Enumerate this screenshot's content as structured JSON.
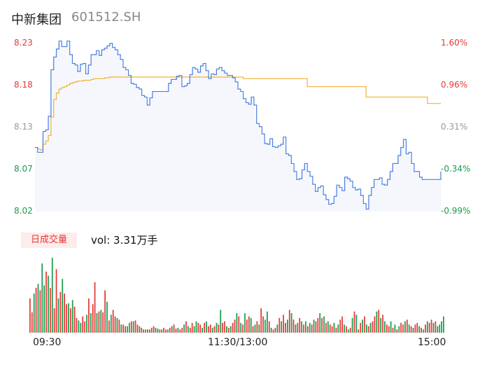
{
  "header": {
    "name": "中新集团",
    "code": "601512.SH"
  },
  "chart_data": {
    "type": "line",
    "title": "",
    "price_axis": {
      "ticks": [
        "8.23",
        "8.18",
        "8.13",
        "8.07",
        "8.02"
      ],
      "ylim": [
        8.02,
        8.23
      ]
    },
    "pct_axis": {
      "ticks": [
        "1.60%",
        "0.96%",
        "0.31%",
        "-0.34%",
        "-0.99%"
      ]
    },
    "colors": {
      "up": "#e53935",
      "down": "#1a9c4f",
      "neutral": "#999999",
      "price_line": "#4a7fe0",
      "avg_line": "#f2b233"
    },
    "x_ticks": [
      "09:30",
      "11:30/13:00",
      "15:00"
    ],
    "price": [
      8.1,
      8.094,
      8.094,
      8.12,
      8.122,
      8.139,
      8.197,
      8.213,
      8.223,
      8.233,
      8.226,
      8.226,
      8.233,
      8.216,
      8.205,
      8.203,
      8.195,
      8.204,
      8.205,
      8.192,
      8.203,
      8.216,
      8.216,
      8.221,
      8.215,
      8.222,
      8.224,
      8.227,
      8.23,
      8.225,
      8.222,
      8.216,
      8.21,
      8.2,
      8.197,
      8.19,
      8.18,
      8.179,
      8.175,
      8.173,
      8.165,
      8.163,
      8.153,
      8.162,
      8.17,
      8.17,
      8.17,
      8.17,
      8.17,
      8.17,
      8.18,
      8.185,
      8.185,
      8.189,
      8.19,
      8.176,
      8.177,
      8.18,
      8.191,
      8.2,
      8.198,
      8.194,
      8.202,
      8.205,
      8.196,
      8.186,
      8.192,
      8.191,
      8.198,
      8.2,
      8.196,
      8.193,
      8.19,
      8.19,
      8.187,
      8.182,
      8.173,
      8.17,
      8.161,
      8.156,
      8.154,
      8.163,
      8.153,
      8.13,
      8.126,
      8.117,
      8.105,
      8.104,
      8.111,
      8.101,
      8.1,
      8.102,
      8.104,
      8.113,
      8.092,
      8.09,
      8.08,
      8.07,
      8.06,
      8.061,
      8.072,
      8.08,
      8.07,
      8.064,
      8.054,
      8.045,
      8.05,
      8.052,
      8.041,
      8.035,
      8.029,
      8.03,
      8.039,
      8.053,
      8.05,
      8.046,
      8.063,
      8.061,
      8.058,
      8.05,
      8.047,
      8.048,
      8.04,
      8.03,
      8.023,
      8.04,
      8.05,
      8.06,
      8.06,
      8.062,
      8.054,
      8.053,
      8.06,
      8.07,
      8.08,
      8.08,
      8.09,
      8.1,
      8.11,
      8.092,
      8.094,
      8.08,
      8.07,
      8.07,
      8.063,
      8.06,
      8.06,
      8.06,
      8.06,
      8.06,
      8.06,
      8.06,
      8.07
    ],
    "avg": [
      8.1,
      8.098,
      8.097,
      8.104,
      8.108,
      8.115,
      8.138,
      8.16,
      8.168,
      8.173,
      8.175,
      8.176,
      8.178,
      8.18,
      8.181,
      8.182,
      8.183,
      8.183,
      8.184,
      8.184,
      8.184,
      8.185,
      8.186,
      8.186,
      8.186,
      8.186,
      8.187,
      8.187,
      8.188,
      8.188,
      8.188,
      8.188,
      8.188,
      8.188,
      8.188,
      8.188,
      8.188,
      8.188,
      8.188,
      8.188,
      8.188,
      8.188,
      8.188,
      8.188,
      8.188,
      8.188,
      8.188,
      8.188,
      8.188,
      8.188,
      8.188,
      8.188,
      8.188,
      8.188,
      8.188,
      8.188,
      8.188,
      8.188,
      8.188,
      8.188,
      8.188,
      8.188,
      8.188,
      8.188,
      8.188,
      8.188,
      8.188,
      8.188,
      8.188,
      8.188,
      8.188,
      8.188,
      8.188,
      8.188,
      8.188,
      8.188,
      8.188,
      8.188,
      8.186,
      8.186,
      8.186,
      8.186,
      8.186,
      8.186,
      8.186,
      8.186,
      8.186,
      8.186,
      8.186,
      8.186,
      8.186,
      8.186,
      8.186,
      8.186,
      8.186,
      8.186,
      8.186,
      8.186,
      8.186,
      8.186,
      8.186,
      8.186,
      8.176,
      8.176,
      8.176,
      8.176,
      8.176,
      8.176,
      8.176,
      8.176,
      8.176,
      8.176,
      8.176,
      8.176,
      8.176,
      8.176,
      8.176,
      8.176,
      8.176,
      8.176,
      8.176,
      8.176,
      8.176,
      8.176,
      8.163,
      8.163,
      8.163,
      8.163,
      8.163,
      8.163,
      8.163,
      8.163,
      8.163,
      8.163,
      8.163,
      8.163,
      8.163,
      8.163,
      8.163,
      8.163,
      8.163,
      8.163,
      8.163,
      8.163,
      8.163,
      8.163,
      8.163,
      8.155,
      8.155,
      8.155,
      8.155,
      8.155,
      8.155
    ],
    "volume_label": "日成交量",
    "volume_text": "vol: 3.31万手",
    "volume": [
      42,
      25,
      48,
      55,
      60,
      52,
      85,
      58,
      75,
      70,
      55,
      92,
      30,
      78,
      42,
      50,
      66,
      48,
      35,
      36,
      30,
      40,
      32,
      18,
      15,
      12,
      20,
      14,
      22,
      42,
      24,
      35,
      62,
      24,
      26,
      28,
      25,
      52,
      38,
      15,
      22,
      28,
      20,
      18,
      16,
      10,
      10,
      8,
      8,
      12,
      14,
      14,
      15,
      10,
      8,
      6,
      4,
      4,
      4,
      4,
      6,
      8,
      6,
      5,
      4,
      4,
      6,
      4,
      4,
      6,
      8,
      10,
      5,
      6,
      4,
      6,
      10,
      14,
      8,
      6,
      12,
      8,
      14,
      12,
      10,
      6,
      12,
      14,
      8,
      10,
      6,
      8,
      12,
      10,
      28,
      12,
      14,
      8,
      6,
      8,
      12,
      16,
      24,
      20,
      12,
      10,
      24,
      16,
      20,
      18,
      8,
      10,
      14,
      10,
      30,
      20,
      16,
      26,
      14,
      6,
      4,
      6,
      10,
      18,
      14,
      22,
      12,
      16,
      28,
      24,
      16,
      10,
      12,
      18,
      14,
      10,
      14,
      8,
      12,
      10,
      16,
      14,
      18,
      24,
      18,
      20,
      12,
      14,
      10,
      8,
      12,
      6,
      10,
      16,
      20,
      10,
      8,
      4,
      6,
      18,
      26,
      22,
      4,
      12,
      16,
      20,
      10,
      8,
      12,
      14,
      20,
      26,
      28,
      18,
      22,
      14,
      10,
      8,
      14,
      6,
      10,
      4,
      8,
      12,
      10,
      14,
      16,
      10,
      8,
      6,
      10,
      12,
      8,
      6,
      4,
      10,
      14,
      12,
      16,
      12,
      14,
      8,
      10,
      14,
      20
    ],
    "volume_colors": [
      1,
      1,
      0,
      1,
      0,
      1,
      0,
      0,
      1,
      0,
      1,
      0,
      1,
      1,
      0,
      1,
      0,
      1,
      1,
      0,
      1,
      0,
      1,
      1,
      0,
      0,
      1,
      1,
      0,
      1,
      0,
      1,
      1,
      0,
      1,
      0,
      1,
      1,
      0,
      1,
      0,
      1,
      1,
      0,
      1,
      0,
      1,
      1,
      0,
      0,
      1,
      0,
      1,
      1,
      0,
      1,
      1,
      0,
      1,
      0,
      1,
      1,
      0,
      0,
      1,
      0,
      1,
      1,
      0,
      1,
      0,
      1,
      1,
      0,
      1,
      1,
      0,
      1,
      0,
      1,
      1,
      0,
      0,
      1,
      1,
      0,
      1,
      0,
      1,
      1,
      0,
      1,
      0,
      1,
      0,
      1,
      1,
      0,
      1,
      0,
      1,
      1,
      0,
      1,
      0,
      1,
      0,
      1,
      1,
      0,
      1,
      0,
      1,
      0,
      1,
      1,
      0,
      0,
      1,
      0,
      1,
      1,
      0,
      1,
      0,
      1,
      1,
      0,
      1,
      0,
      1,
      0,
      1,
      1,
      0,
      1,
      0,
      1,
      0,
      1,
      0,
      1,
      1,
      0,
      1,
      0,
      1,
      0,
      1,
      1,
      0,
      1,
      0,
      1,
      1,
      0,
      1,
      0,
      1,
      0,
      1,
      0,
      1,
      1,
      0,
      1,
      0,
      1,
      0,
      1,
      1,
      0,
      1,
      0,
      1,
      0,
      1,
      1,
      0,
      1,
      0,
      1,
      0,
      1,
      1,
      0,
      1,
      0,
      1,
      0,
      1,
      1,
      0,
      1,
      0,
      1,
      0,
      1,
      1,
      0,
      1
    ]
  }
}
